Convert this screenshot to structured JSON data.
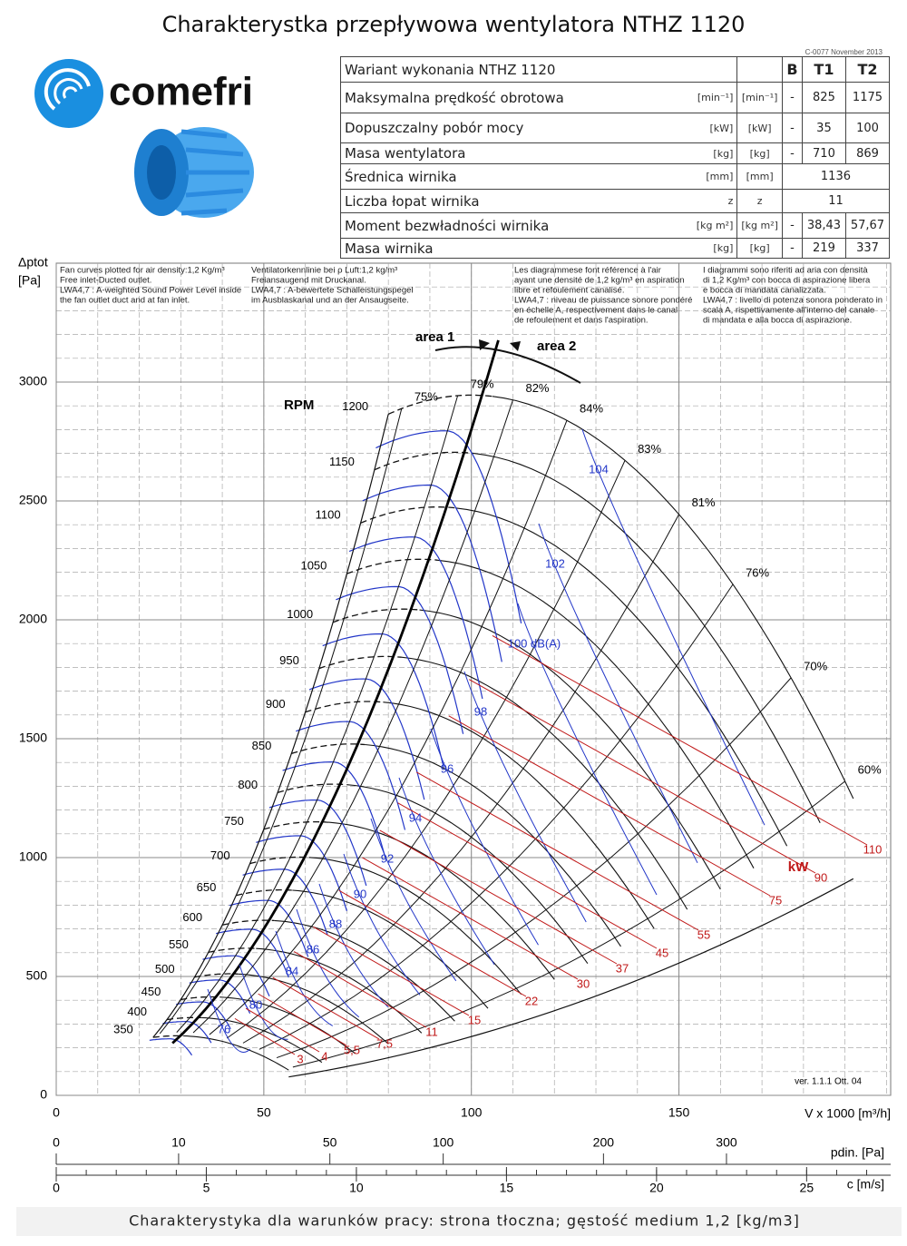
{
  "title": "Charakterystka przepływowa wentylatora NTHZ 1120",
  "doc_code": "C-0077 November 2013",
  "logo_text": "comefri",
  "table": {
    "header": [
      "Wariant wykonania NTHZ 1120",
      "B",
      "T1",
      "T2"
    ],
    "rows": [
      [
        "Maksymalna prędkość obrotowa",
        "[min⁻¹]",
        "[min⁻¹]",
        "-",
        825,
        1175
      ],
      [
        "Dopuszczalny pobór mocy",
        "[kW]",
        "[kW]",
        "-",
        35,
        100
      ],
      [
        "Masa wentylatora",
        "[kg]",
        "[kg]",
        "-",
        710,
        869
      ],
      [
        "Średnica wirnika",
        "[mm]",
        "[mm]",
        1136
      ],
      [
        "Liczba łopat wirnika",
        "z",
        "z",
        11
      ],
      [
        "Moment bezwładności wirnika",
        "[kg m²]",
        "[kg m²]",
        "-",
        "38,43",
        "57,67"
      ],
      [
        "Masa wirnika",
        "[kg]",
        "[kg]",
        "-",
        219,
        337
      ]
    ]
  },
  "chart_data": {
    "type": "fan-curve",
    "y_label": "Δptot",
    "y_unit": "[Pa]",
    "x_label": "V x 1000 [m³/h]",
    "xlim": [
      0,
      201
    ],
    "xticks": [
      0,
      50,
      100,
      150
    ],
    "ylim": [
      0,
      3500
    ],
    "yticks": [
      0,
      500,
      1000,
      1500,
      2000,
      2500,
      3000
    ],
    "grid": true,
    "notes": [
      [
        "Fan curves plotted for air density:1,2 Kg/m³",
        "Free inlet-Ducted outlet.",
        "LWA4,7 : A-weighted Sound Power Level inside",
        "the fan outlet duct and at fan inlet."
      ],
      [
        "Ventilatorkennlinie bei ρ Luft:1,2 kg/m³",
        "Freiansaugend mit Druckanal.",
        "LWA4,7 : A-bewertete Schalleistungspegel",
        "im Ausblaskanal und an der Ansaugseite."
      ],
      [
        "Les diagrammese font référence à l'air",
        "ayant une densité de 1,2 kg/m³ en aspiration",
        "libre et refoulement canalisé.",
        "LWA4,7 : niveau de puissance sonore pondéré",
        "en échelle A, respectivement dans le canal",
        "de refoulement et dans l'aspiration."
      ],
      [
        "I diagrammi sono riferiti ad aria con densità",
        "di 1,2 Kg/m³ con bocca di aspirazione libera",
        "e bocca di mandata canalizzata.",
        "LWA4,7 : livello di potenza sonora ponderato in",
        "scala A, rispettivamente all'interno del canale",
        "di mandata e alla bocca di aspirazione."
      ]
    ],
    "rpm_label": "RPM",
    "rpm": [
      350,
      400,
      450,
      500,
      550,
      600,
      650,
      700,
      750,
      800,
      850,
      900,
      950,
      1000,
      1050,
      1100,
      1150,
      1200
    ],
    "efficiency_labels": [
      "75%",
      "79%",
      "82%",
      "84%",
      "83%",
      "81%",
      "76%",
      "70%",
      "60%"
    ],
    "db_labels": [
      76,
      80,
      84,
      86,
      88,
      90,
      92,
      94,
      96,
      98,
      "100 dB(A)",
      102,
      104
    ],
    "kw_unit": "kW",
    "kw_labels": [
      3,
      4,
      "5,5",
      "7,5",
      11,
      15,
      22,
      30,
      37,
      45,
      55,
      75,
      90,
      110
    ],
    "area_labels": [
      "area 1",
      "area 2"
    ],
    "version": "ver. 1.1.1 Ott. 04",
    "pdin_axis": {
      "label": "pdin. [Pa]",
      "lim": [
        0,
        465
      ],
      "scale": "sqrt",
      "ticks": [
        0,
        10,
        50,
        100,
        200,
        300
      ]
    },
    "c_axis": {
      "label": "c [m/s]",
      "lim": [
        0,
        27.8
      ],
      "ticks": [
        0,
        5,
        10,
        15,
        20,
        25
      ]
    }
  },
  "footer": "Charakterystyka dla warunków pracy: strona tłoczna; gęstość medium 1,2 [kg/m3]"
}
